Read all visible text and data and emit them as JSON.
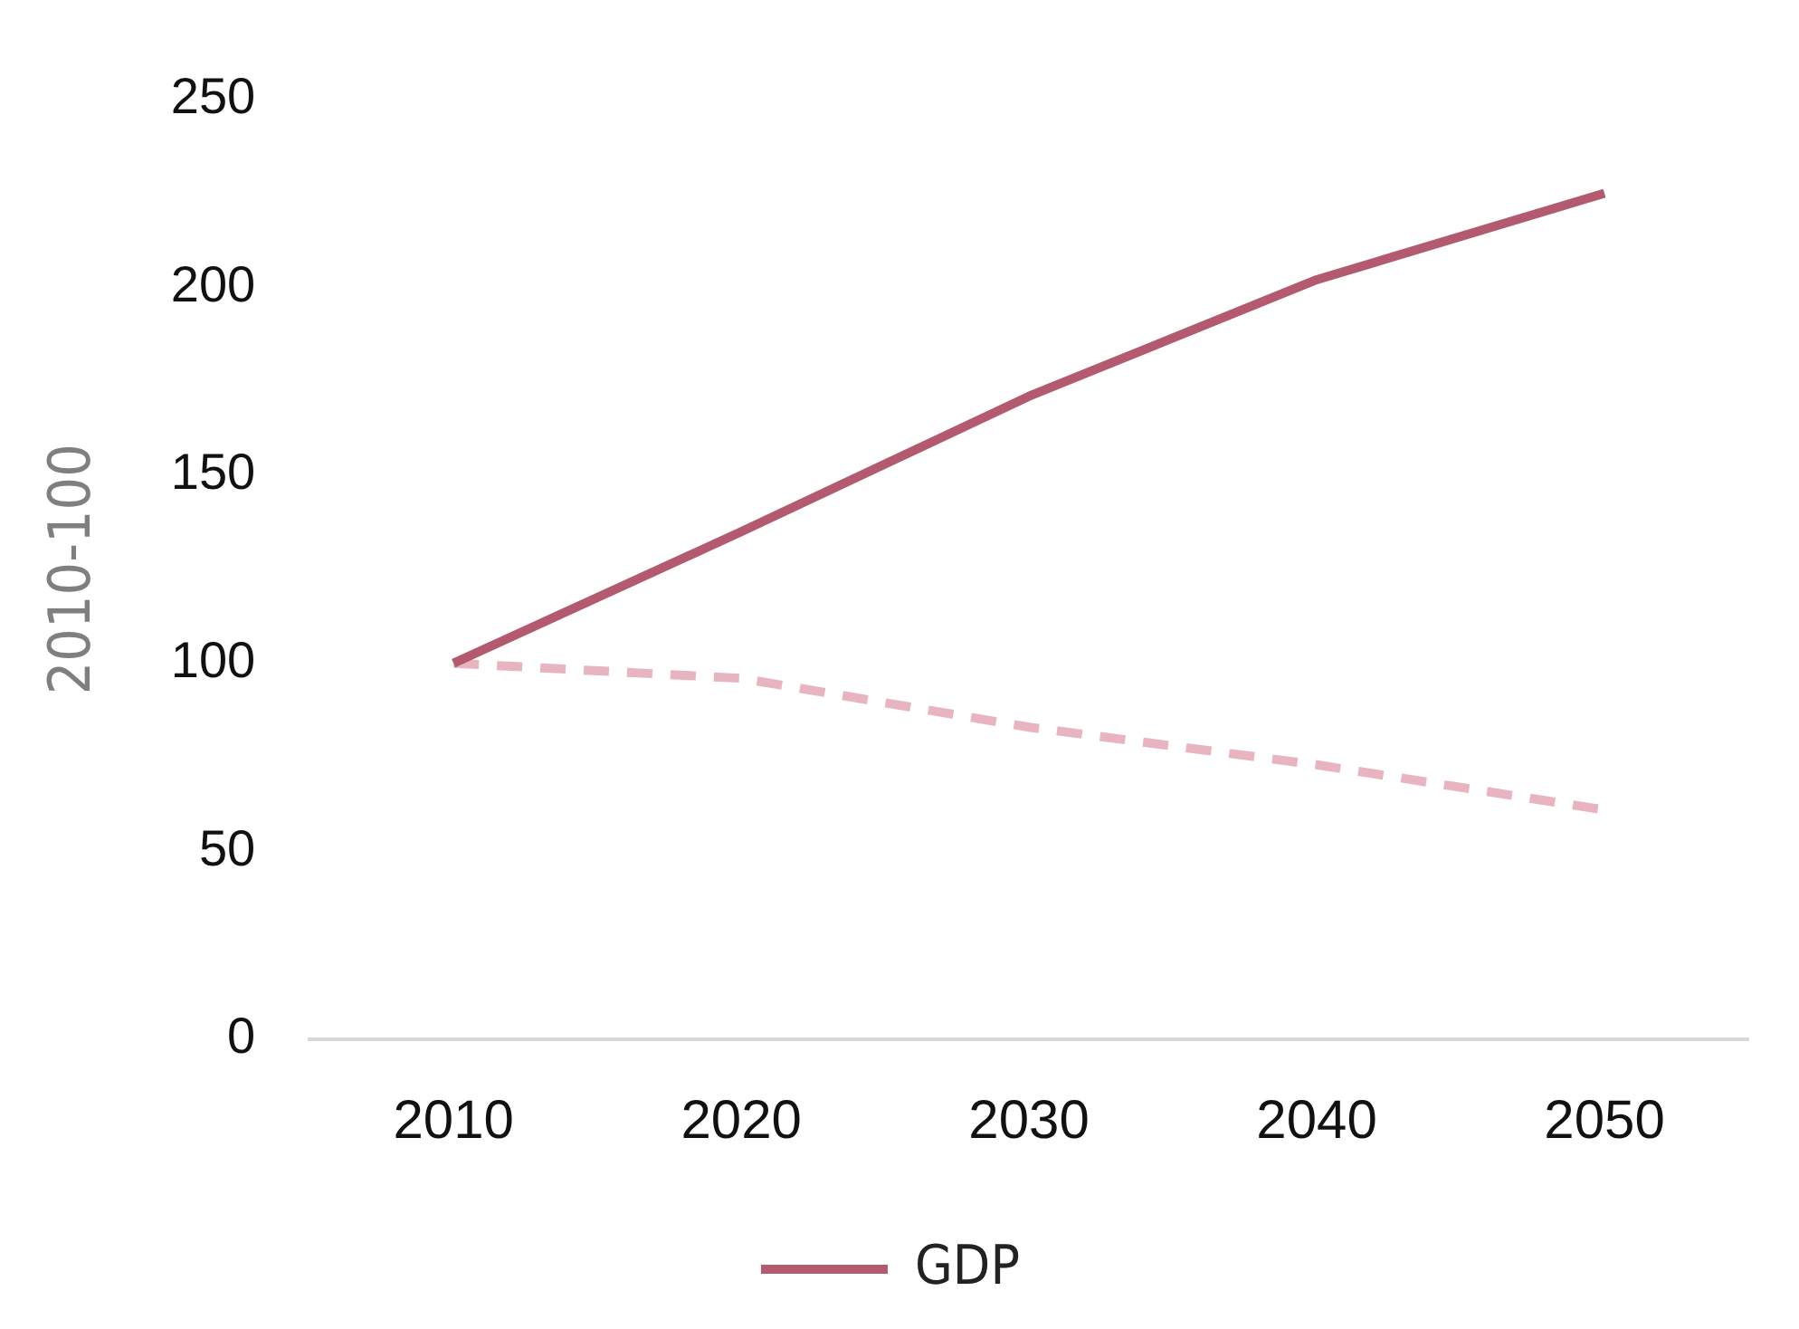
{
  "chart_data": {
    "type": "line",
    "ylabel": "2010-100",
    "categories": [
      "2010",
      "2020",
      "2030",
      "2040",
      "2050"
    ],
    "series": [
      {
        "name": "GDP",
        "color": "#b45a6e",
        "values": [
          100,
          135,
          171,
          202,
          225
        ],
        "line_style": "solid"
      },
      {
        "color": "#e8b4c0",
        "values": [
          100,
          96,
          83,
          73,
          61
        ],
        "line_style": "dashed"
      }
    ],
    "ylim": [
      0,
      250
    ],
    "yticks": [
      0,
      50,
      100,
      150,
      200,
      250
    ],
    "grid": false,
    "legend": "bottom",
    "marker": "none"
  }
}
